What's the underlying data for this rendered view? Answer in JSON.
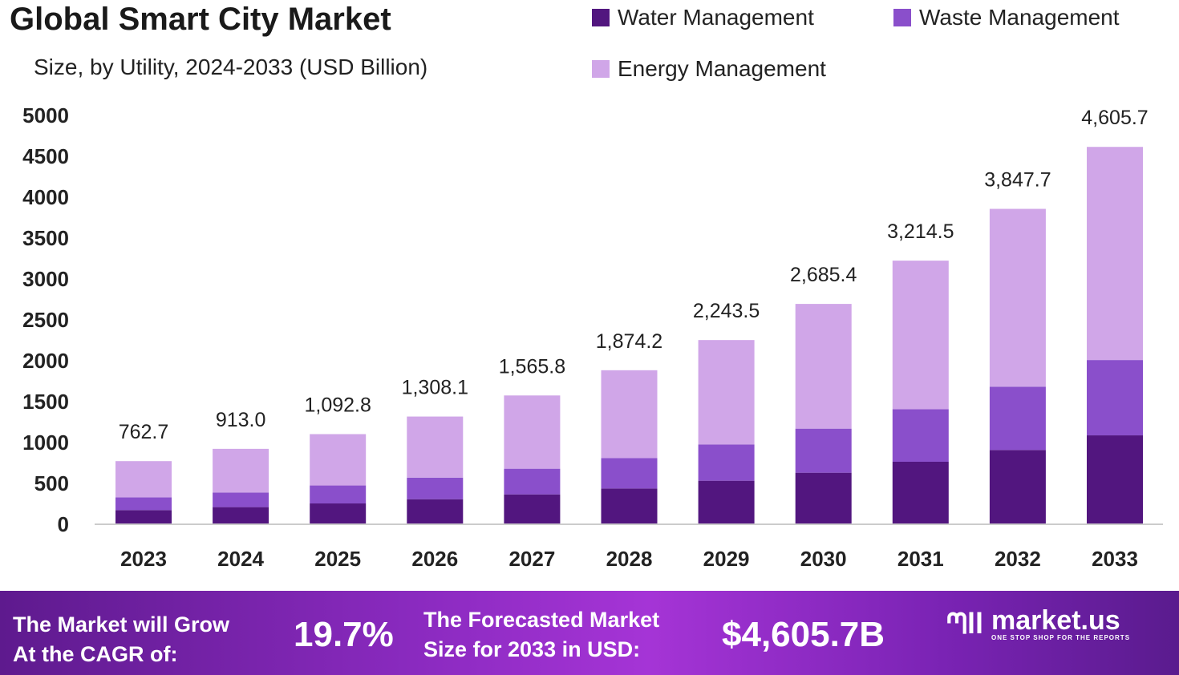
{
  "chart_data": {
    "type": "bar",
    "stacked": true,
    "title": "Global Smart City Market",
    "subtitle": "Size, by Utility, 2024-2033 (USD Billion)",
    "categories": [
      "2023",
      "2024",
      "2025",
      "2026",
      "2027",
      "2028",
      "2029",
      "2030",
      "2031",
      "2032",
      "2033"
    ],
    "series": [
      {
        "name": "Water Management",
        "color": "#52167f",
        "values": [
          164,
          200,
          245,
          297,
          356,
          428,
          523,
          621,
          755,
          899,
          1078
        ]
      },
      {
        "name": "Waste Management",
        "color": "#8a4fcb",
        "values": [
          156,
          179,
          220,
          264,
          314,
          373,
          444,
          539,
          643,
          774,
          921
        ]
      },
      {
        "name": "Energy Management",
        "color": "#d0a6e8",
        "values": [
          442.7,
          534,
          627.8,
          747.1,
          895.8,
          1073.2,
          1276.5,
          1525.4,
          1816.5,
          2174.7,
          2606.7
        ]
      }
    ],
    "totals": [
      "762.7",
      "913.0",
      "1,092.8",
      "1,308.1",
      "1,565.8",
      "1,874.2",
      "2,243.5",
      "2,685.4",
      "3,214.5",
      "3,847.7",
      "4,605.7"
    ],
    "yticks": [
      0,
      500,
      1000,
      1500,
      2000,
      2500,
      3000,
      3500,
      4000,
      4500,
      5000
    ],
    "ylim": [
      0,
      5000
    ],
    "grid": false,
    "legend_position": "top-right"
  },
  "banner": {
    "cagr_label": [
      "The Market will Grow",
      "At the CAGR of:"
    ],
    "cagr_value": "19.7%",
    "forecast_label": [
      "The Forecasted Market",
      "Size for 2033 in USD:"
    ],
    "forecast_value": "$4,605.7B",
    "brand": "market.us",
    "tagline": "ONE STOP SHOP FOR THE REPORTS"
  }
}
